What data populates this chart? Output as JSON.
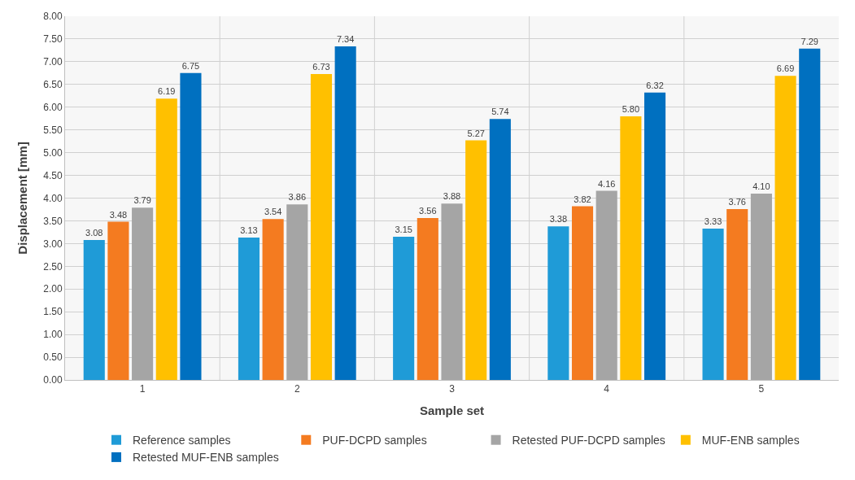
{
  "chart_data": {
    "type": "bar",
    "xlabel": "Sample set",
    "ylabel": "Displacement [mm]",
    "categories": [
      "1",
      "2",
      "3",
      "4",
      "5"
    ],
    "series": [
      {
        "name": "Reference samples",
        "color": "#1f9bd7",
        "values": [
          3.08,
          3.13,
          3.15,
          3.38,
          3.33
        ],
        "value_labels": [
          "3.08",
          "3.13",
          "3.15",
          "3.38",
          "3.33"
        ]
      },
      {
        "name": "PUF-DCPD samples",
        "color": "#f47b20",
        "values": [
          3.48,
          3.54,
          3.56,
          3.82,
          3.76
        ],
        "value_labels": [
          "3.48",
          "3.54",
          "3.56",
          "3.82",
          "3.76"
        ]
      },
      {
        "name": "Retested PUF-DCPD samples",
        "color": "#a5a5a5",
        "values": [
          3.79,
          3.86,
          3.88,
          4.16,
          4.1
        ],
        "value_labels": [
          "3.79",
          "3.86",
          "3.88",
          "4.16",
          "4.10"
        ]
      },
      {
        "name": "MUF-ENB samples",
        "color": "#ffc000",
        "values": [
          6.19,
          6.73,
          5.27,
          5.8,
          6.69
        ],
        "value_labels": [
          "6.19",
          "6.73",
          "5.27",
          "5.80",
          "6.69"
        ]
      },
      {
        "name": "Retested MUF-ENB samples",
        "color": "#0070c0",
        "values": [
          6.75,
          7.34,
          5.74,
          6.32,
          7.29
        ],
        "value_labels": [
          "6.75",
          "7.34",
          "5.74",
          "6.32",
          "7.29"
        ]
      }
    ],
    "ylim": [
      0,
      8
    ],
    "yticks": [
      {
        "value": 0,
        "label": "0.00"
      },
      {
        "value": 0.5,
        "label": "0.50"
      },
      {
        "value": 1,
        "label": "1.00"
      },
      {
        "value": 1.5,
        "label": "1.50"
      },
      {
        "value": 2,
        "label": "2.00"
      },
      {
        "value": 2.5,
        "label": "2.50"
      },
      {
        "value": 3,
        "label": "3.00"
      },
      {
        "value": 3.5,
        "label": "3.50"
      },
      {
        "value": 4,
        "label": "4.00"
      },
      {
        "value": 4.5,
        "label": "4.50"
      },
      {
        "value": 5,
        "label": "5.00"
      },
      {
        "value": 5.5,
        "label": "5.50"
      },
      {
        "value": 6,
        "label": "6.00"
      },
      {
        "value": 6.5,
        "label": "6.50"
      },
      {
        "value": 7,
        "label": "7.00"
      },
      {
        "value": 7.5,
        "label": "7.50"
      },
      {
        "value": 8,
        "label": "8.00"
      }
    ],
    "grid": true,
    "legend": "bottom"
  }
}
